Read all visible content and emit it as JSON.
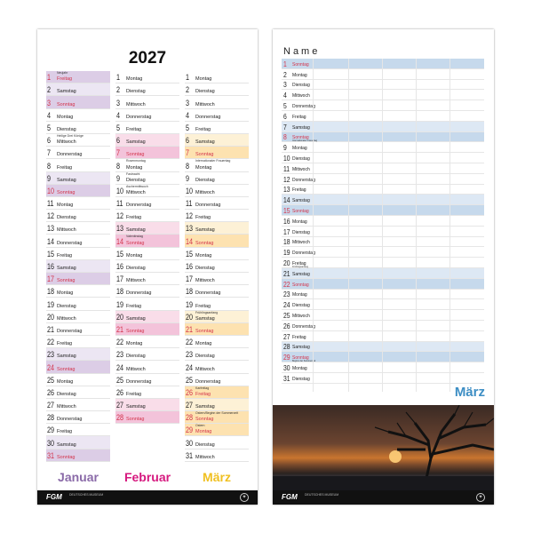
{
  "left": {
    "year": "2027",
    "colors": {
      "Januar": "#8a6aa8",
      "Februar": "#d6197f",
      "März": "#f0c020"
    },
    "months": [
      {
        "label": "Januar",
        "shade": {
          "sat": "#ece6f3",
          "sun": "#dccde6",
          "hol": "#dccde6"
        },
        "days": [
          [
            "1",
            "Freitag",
            "Neujahr",
            "hol"
          ],
          [
            "2",
            "Samstag",
            "",
            "sat"
          ],
          [
            "3",
            "Sonntag",
            "",
            "sun"
          ],
          [
            "4",
            "Montag",
            "",
            ""
          ],
          [
            "5",
            "Dienstag",
            "",
            ""
          ],
          [
            "6",
            "Mittwoch",
            "Heilige Drei Könige",
            ""
          ],
          [
            "7",
            "Donnerstag",
            "",
            ""
          ],
          [
            "8",
            "Freitag",
            "",
            ""
          ],
          [
            "9",
            "Samstag",
            "",
            "sat"
          ],
          [
            "10",
            "Sonntag",
            "",
            "sun"
          ],
          [
            "11",
            "Montag",
            "",
            ""
          ],
          [
            "12",
            "Dienstag",
            "",
            ""
          ],
          [
            "13",
            "Mittwoch",
            "",
            ""
          ],
          [
            "14",
            "Donnerstag",
            "",
            ""
          ],
          [
            "15",
            "Freitag",
            "",
            ""
          ],
          [
            "16",
            "Samstag",
            "",
            "sat"
          ],
          [
            "17",
            "Sonntag",
            "",
            "sun"
          ],
          [
            "18",
            "Montag",
            "",
            ""
          ],
          [
            "19",
            "Dienstag",
            "",
            ""
          ],
          [
            "20",
            "Mittwoch",
            "",
            ""
          ],
          [
            "21",
            "Donnerstag",
            "",
            ""
          ],
          [
            "22",
            "Freitag",
            "",
            ""
          ],
          [
            "23",
            "Samstag",
            "",
            "sat"
          ],
          [
            "24",
            "Sonntag",
            "",
            "sun"
          ],
          [
            "25",
            "Montag",
            "",
            ""
          ],
          [
            "26",
            "Dienstag",
            "",
            ""
          ],
          [
            "27",
            "Mittwoch",
            "",
            ""
          ],
          [
            "28",
            "Donnerstag",
            "",
            ""
          ],
          [
            "29",
            "Freitag",
            "",
            ""
          ],
          [
            "30",
            "Samstag",
            "",
            "sat"
          ],
          [
            "31",
            "Sonntag",
            "",
            "sun"
          ]
        ]
      },
      {
        "label": "Februar",
        "shade": {
          "sat": "#f9dde9",
          "sun": "#f3c3da",
          "hol": "#f3c3da"
        },
        "days": [
          [
            "1",
            "Montag",
            "",
            ""
          ],
          [
            "2",
            "Dienstag",
            "",
            ""
          ],
          [
            "3",
            "Mittwoch",
            "",
            ""
          ],
          [
            "4",
            "Donnerstag",
            "",
            ""
          ],
          [
            "5",
            "Freitag",
            "",
            ""
          ],
          [
            "6",
            "Samstag",
            "",
            "sat"
          ],
          [
            "7",
            "Sonntag",
            "",
            "sun"
          ],
          [
            "8",
            "Montag",
            "Rosenmontag",
            ""
          ],
          [
            "9",
            "Dienstag",
            "Fastnacht",
            ""
          ],
          [
            "10",
            "Mittwoch",
            "Aschermittwoch",
            ""
          ],
          [
            "11",
            "Donnerstag",
            "",
            ""
          ],
          [
            "12",
            "Freitag",
            "",
            ""
          ],
          [
            "13",
            "Samstag",
            "",
            "sat"
          ],
          [
            "14",
            "Sonntag",
            "Valentinstag",
            "sun"
          ],
          [
            "15",
            "Montag",
            "",
            ""
          ],
          [
            "16",
            "Dienstag",
            "",
            ""
          ],
          [
            "17",
            "Mittwoch",
            "",
            ""
          ],
          [
            "18",
            "Donnerstag",
            "",
            ""
          ],
          [
            "19",
            "Freitag",
            "",
            ""
          ],
          [
            "20",
            "Samstag",
            "",
            "sat"
          ],
          [
            "21",
            "Sonntag",
            "",
            "sun"
          ],
          [
            "22",
            "Montag",
            "",
            ""
          ],
          [
            "23",
            "Dienstag",
            "",
            ""
          ],
          [
            "24",
            "Mittwoch",
            "",
            ""
          ],
          [
            "25",
            "Donnerstag",
            "",
            ""
          ],
          [
            "26",
            "Freitag",
            "",
            ""
          ],
          [
            "27",
            "Samstag",
            "",
            "sat"
          ],
          [
            "28",
            "Sonntag",
            "",
            "sun"
          ]
        ]
      },
      {
        "label": "März",
        "shade": {
          "sat": "#fdf1d6",
          "sun": "#fde2b0",
          "hol": "#fde2b0"
        },
        "days": [
          [
            "1",
            "Montag",
            "",
            ""
          ],
          [
            "2",
            "Dienstag",
            "",
            ""
          ],
          [
            "3",
            "Mittwoch",
            "",
            ""
          ],
          [
            "4",
            "Donnerstag",
            "",
            ""
          ],
          [
            "5",
            "Freitag",
            "",
            ""
          ],
          [
            "6",
            "Samstag",
            "",
            "sat"
          ],
          [
            "7",
            "Sonntag",
            "",
            "sun"
          ],
          [
            "8",
            "Montag",
            "Internationaler Frauentag",
            ""
          ],
          [
            "9",
            "Dienstag",
            "",
            ""
          ],
          [
            "10",
            "Mittwoch",
            "",
            ""
          ],
          [
            "11",
            "Donnerstag",
            "",
            ""
          ],
          [
            "12",
            "Freitag",
            "",
            ""
          ],
          [
            "13",
            "Samstag",
            "",
            "sat"
          ],
          [
            "14",
            "Sonntag",
            "",
            "sun"
          ],
          [
            "15",
            "Montag",
            "",
            ""
          ],
          [
            "16",
            "Dienstag",
            "",
            ""
          ],
          [
            "17",
            "Mittwoch",
            "",
            ""
          ],
          [
            "18",
            "Donnerstag",
            "",
            ""
          ],
          [
            "19",
            "Freitag",
            "",
            ""
          ],
          [
            "20",
            "Samstag",
            "Frühlingsanfang",
            "sat"
          ],
          [
            "21",
            "Sonntag",
            "",
            "sun"
          ],
          [
            "22",
            "Montag",
            "",
            ""
          ],
          [
            "23",
            "Dienstag",
            "",
            ""
          ],
          [
            "24",
            "Mittwoch",
            "",
            ""
          ],
          [
            "25",
            "Donnerstag",
            "",
            ""
          ],
          [
            "26",
            "Freitag",
            "Karfreitag",
            "hol"
          ],
          [
            "27",
            "Samstag",
            "",
            "sat"
          ],
          [
            "28",
            "Sonntag",
            "Ostern/Beginn der Sommerzeit",
            "sun"
          ],
          [
            "29",
            "Montag",
            "Ostern",
            "hol"
          ],
          [
            "30",
            "Dienstag",
            "",
            ""
          ],
          [
            "31",
            "Mittwoch",
            "",
            ""
          ]
        ]
      }
    ],
    "footer_logo": "FGM",
    "footer_sub": "DEUTSCHES MUSEUM"
  },
  "right": {
    "name_header": "Name",
    "month_label": "März",
    "month_color": "#3d8ec4",
    "shade": {
      "sat": "#dde8f4",
      "sun": "#c6d9ec"
    },
    "days": [
      [
        "1",
        "Sonntag",
        "",
        "sun"
      ],
      [
        "2",
        "Montag",
        "",
        ""
      ],
      [
        "3",
        "Dienstag",
        "",
        ""
      ],
      [
        "4",
        "Mittwoch",
        "",
        ""
      ],
      [
        "5",
        "Donnerstag",
        "",
        ""
      ],
      [
        "6",
        "Freitag",
        "",
        ""
      ],
      [
        "7",
        "Samstag",
        "",
        "sat"
      ],
      [
        "8",
        "Sonntag",
        "Internationaler Frauentag",
        "sun"
      ],
      [
        "9",
        "Montag",
        "",
        ""
      ],
      [
        "10",
        "Dienstag",
        "",
        ""
      ],
      [
        "11",
        "Mittwoch",
        "",
        ""
      ],
      [
        "12",
        "Donnerstag",
        "",
        ""
      ],
      [
        "13",
        "Freitag",
        "",
        ""
      ],
      [
        "14",
        "Samstag",
        "",
        "sat"
      ],
      [
        "15",
        "Sonntag",
        "",
        "sun"
      ],
      [
        "16",
        "Montag",
        "",
        ""
      ],
      [
        "17",
        "Dienstag",
        "",
        ""
      ],
      [
        "18",
        "Mittwoch",
        "",
        ""
      ],
      [
        "19",
        "Donnerstag",
        "",
        ""
      ],
      [
        "20",
        "Freitag",
        "Frühlingsanfang",
        ""
      ],
      [
        "21",
        "Samstag",
        "",
        "sat"
      ],
      [
        "22",
        "Sonntag",
        "",
        "sun"
      ],
      [
        "23",
        "Montag",
        "",
        ""
      ],
      [
        "24",
        "Dienstag",
        "",
        ""
      ],
      [
        "25",
        "Mittwoch",
        "",
        ""
      ],
      [
        "26",
        "Donnerstag",
        "",
        ""
      ],
      [
        "27",
        "Freitag",
        "",
        ""
      ],
      [
        "28",
        "Samstag",
        "",
        "sat"
      ],
      [
        "29",
        "Sonntag",
        "Beginn der Sommerzeit",
        "sun"
      ],
      [
        "30",
        "Montag",
        "",
        ""
      ],
      [
        "31",
        "Dienstag",
        "",
        ""
      ]
    ],
    "footer_logo": "FGM",
    "footer_sub": "DEUTSCHES MUSEUM"
  }
}
